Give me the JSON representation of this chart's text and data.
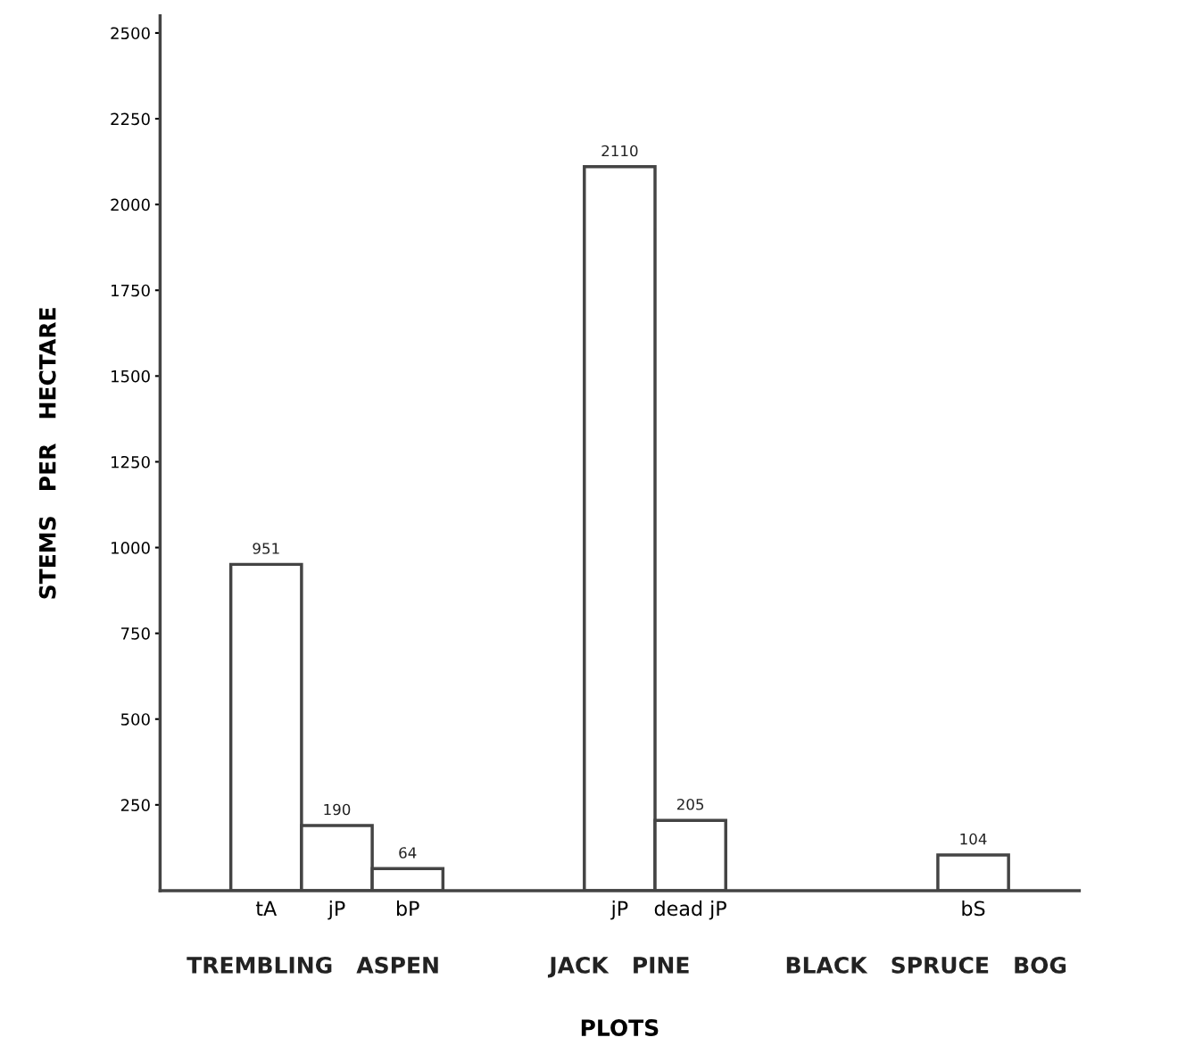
{
  "chart_data": {
    "type": "bar",
    "categories": [
      null,
      "tA",
      "jP",
      "bP",
      null,
      null,
      "jP",
      "dead jP",
      null,
      null,
      null,
      "bS",
      null
    ],
    "values": [
      null,
      951,
      190,
      64,
      null,
      null,
      2110,
      205,
      null,
      null,
      null,
      104,
      null
    ],
    "color": "#ffffff",
    "data_labels": true,
    "ylabel": "STEMS   PER   HECTARE",
    "xlabel": "PLOTS",
    "annotations": [
      "TREMBLING   ASPEN",
      "JACK   PINE",
      "BLACK   SPRUCE   BOG"
    ],
    "ylim": [
      0,
      2550
    ],
    "yticks": [
      250,
      500,
      750,
      1000,
      1250,
      1500,
      1750,
      2000,
      2250,
      2500
    ],
    "grid": false,
    "legend": false
  }
}
